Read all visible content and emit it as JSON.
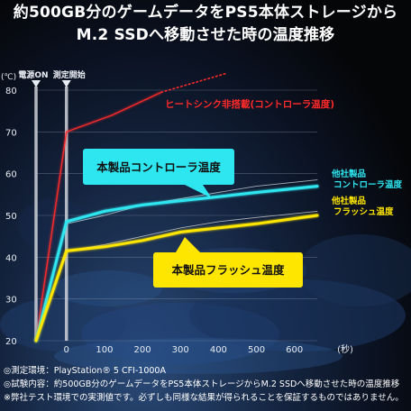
{
  "title_lines": [
    "約500GB分のゲームデータをPS5本体ストレージから",
    "M.2 SSDへ移動させた時の温度推移"
  ],
  "footnotes": [
    "◎測定環境：PlayStation® 5 CFI-1000A",
    "◎試験内容：約500GB分のゲームデータをPS5本体ストレージからM.2 SSDへ移動させた時の温度推移",
    "※弊社テスト環境での実測値です。必ずしも同様な結果が得られることを保証するものではありません。"
  ],
  "colors": {
    "grid": "#8a97ad",
    "red": "#ff2a2a",
    "cyan": "#2ee6f0",
    "yellow": "#ffe600",
    "gray": "#a7adb8",
    "marker": "#cfd3da"
  },
  "chart_data": {
    "type": "line",
    "y_unit_label": "(℃)",
    "x_unit_label": "(秒)",
    "ylim": [
      20,
      80
    ],
    "xlim": [
      -80,
      660
    ],
    "yticks": [
      20,
      30,
      40,
      50,
      60,
      70,
      80
    ],
    "xticks": [
      0,
      100,
      200,
      300,
      400,
      500,
      600
    ],
    "grid": true,
    "markers": [
      {
        "label": "電源ON",
        "x": -80
      },
      {
        "label": "測定開始",
        "x": 0
      }
    ],
    "series": [
      {
        "name": "ヒートシンク非搭載(コントローラ温度)",
        "color": "#ff2a2a",
        "points": [
          [
            -80,
            20
          ],
          [
            0,
            70
          ],
          [
            120,
            74
          ],
          [
            250,
            79.5
          ]
        ],
        "dotted_tail": [
          [
            250,
            79.5
          ],
          [
            420,
            84
          ]
        ]
      },
      {
        "name": "他社製品 コントローラ温度",
        "color": "#a7adb8",
        "points": [
          [
            -80,
            20
          ],
          [
            0,
            48
          ],
          [
            100,
            50
          ],
          [
            200,
            52.5
          ],
          [
            300,
            54
          ],
          [
            400,
            55.5
          ],
          [
            500,
            57
          ],
          [
            660,
            58.5
          ]
        ]
      },
      {
        "name": "本製品コントローラ温度",
        "color": "#2ee6f0",
        "points": [
          [
            -80,
            20
          ],
          [
            0,
            48.5
          ],
          [
            100,
            51
          ],
          [
            200,
            52.5
          ],
          [
            300,
            53.5
          ],
          [
            400,
            54.5
          ],
          [
            500,
            55.5
          ],
          [
            660,
            57
          ]
        ]
      },
      {
        "name": "他社製品 フラッシュ温度",
        "color": "#a7adb8",
        "points": [
          [
            -80,
            20
          ],
          [
            0,
            41.5
          ],
          [
            100,
            43
          ],
          [
            200,
            45
          ],
          [
            300,
            47
          ],
          [
            400,
            48.5
          ],
          [
            500,
            49.5
          ],
          [
            660,
            51
          ]
        ]
      },
      {
        "name": "本製品フラッシュ温度",
        "color": "#ffe600",
        "points": [
          [
            -80,
            20
          ],
          [
            0,
            41.5
          ],
          [
            100,
            42.5
          ],
          [
            200,
            44
          ],
          [
            300,
            46
          ],
          [
            400,
            47
          ],
          [
            500,
            48
          ],
          [
            660,
            50
          ]
        ]
      }
    ],
    "annotations": {
      "no_heatsink": "ヒートシンク非搭載(コントローラ温度)",
      "product_controller": "本製品コントローラ温度",
      "product_flash": "本製品フラッシュ温度",
      "other_controller": [
        "他社製品",
        "コントローラ温度"
      ],
      "other_flash": [
        "他社製品",
        "フラッシュ温度"
      ]
    }
  }
}
